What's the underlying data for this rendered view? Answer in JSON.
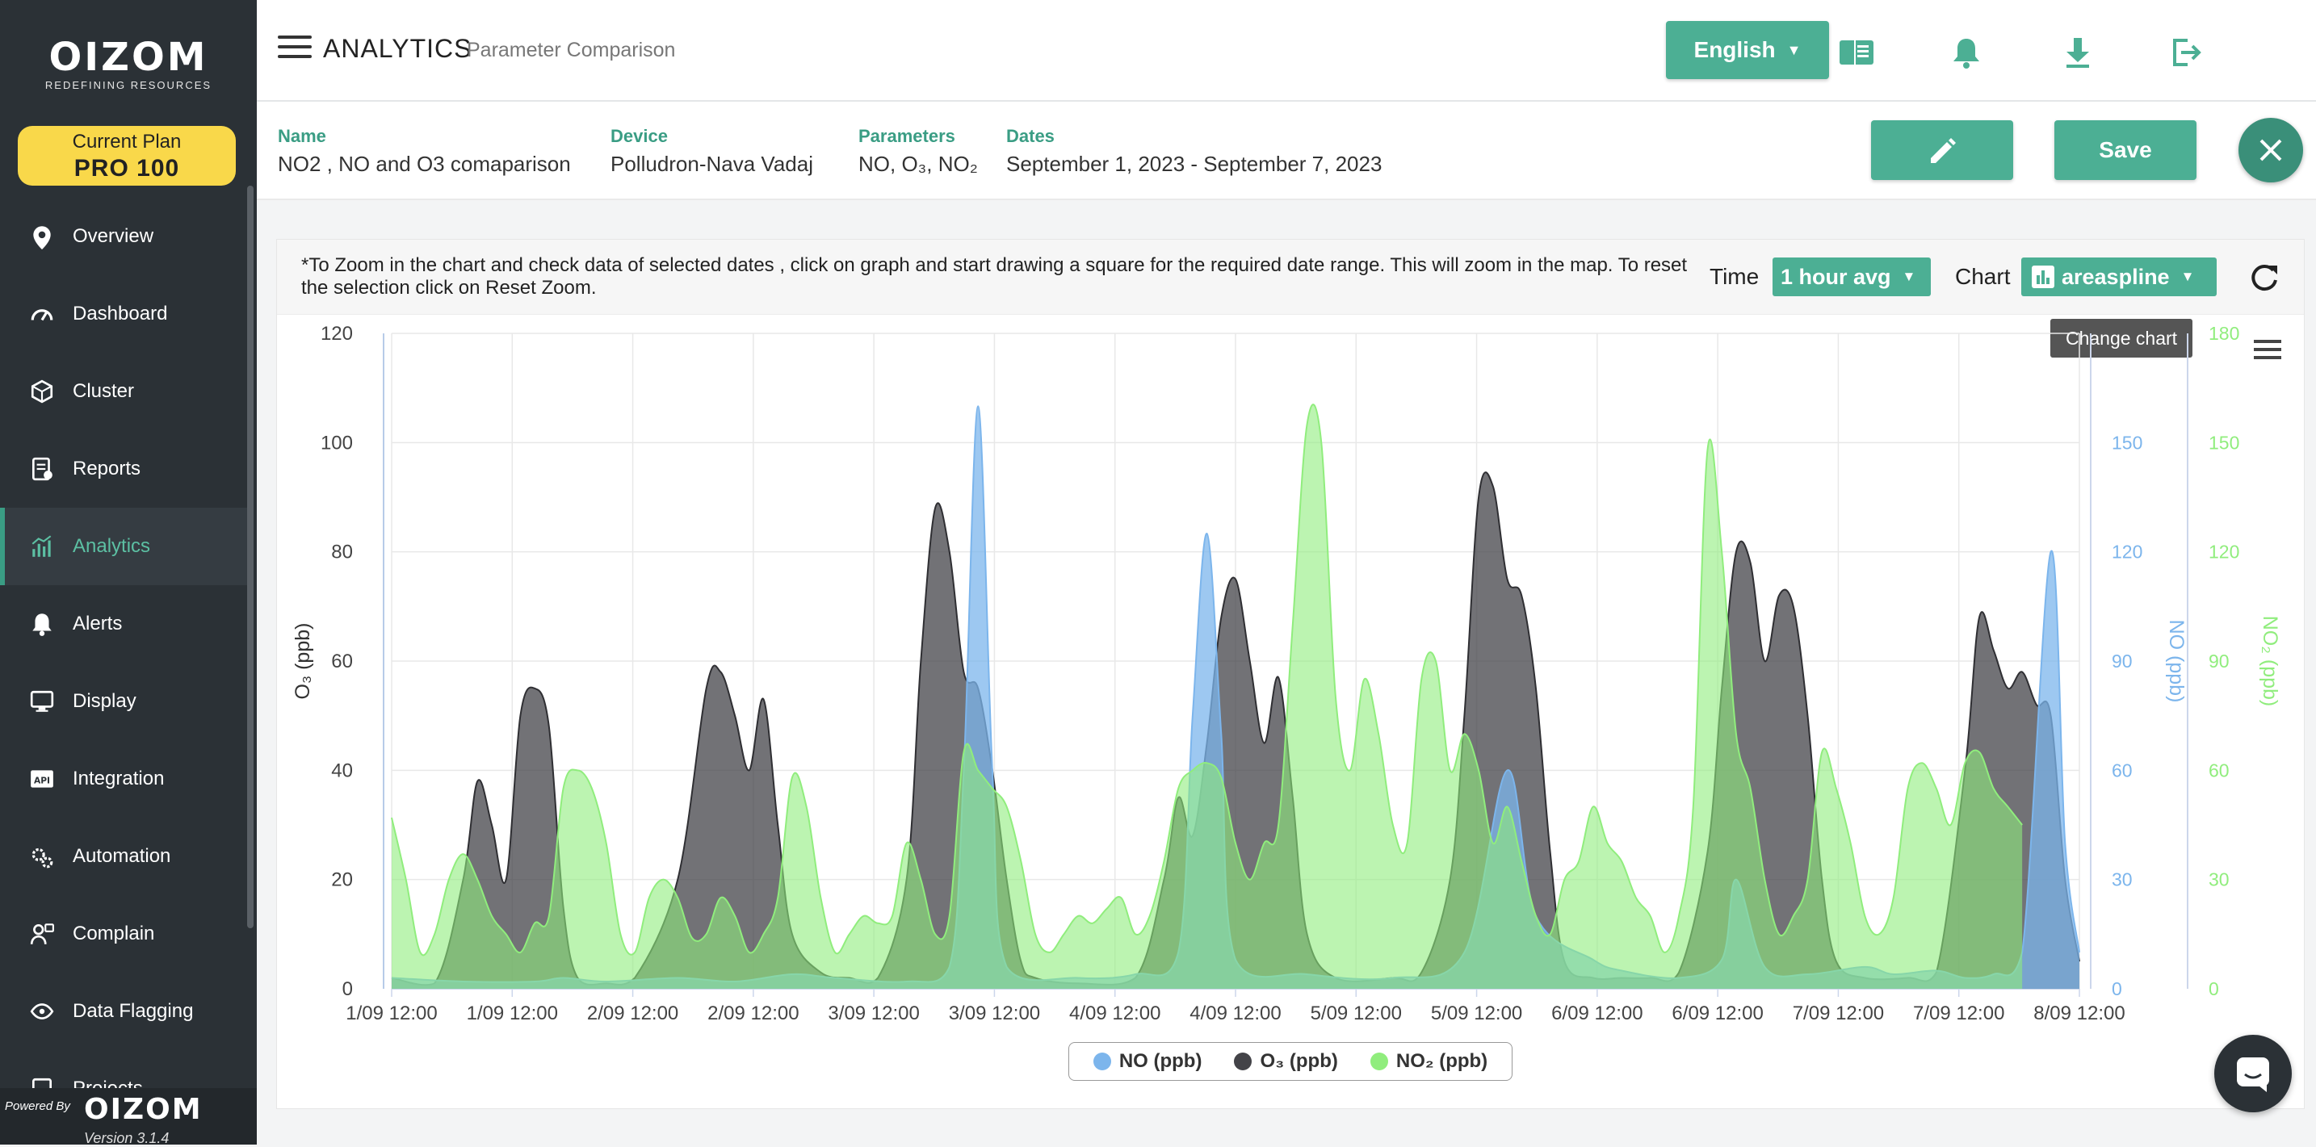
{
  "brand": {
    "name": "OIZOM",
    "tagline": "REDEFINING RESOURCES"
  },
  "plan": {
    "label": "Current Plan",
    "name": "PRO 100"
  },
  "sidebar": {
    "items": [
      {
        "label": "Overview",
        "icon": "map-pin-icon"
      },
      {
        "label": "Dashboard",
        "icon": "gauge-icon"
      },
      {
        "label": "Cluster",
        "icon": "cube-network-icon"
      },
      {
        "label": "Reports",
        "icon": "report-icon"
      },
      {
        "label": "Analytics",
        "icon": "chart-icon",
        "active": true
      },
      {
        "label": "Alerts",
        "icon": "bell-icon"
      },
      {
        "label": "Display",
        "icon": "monitor-icon"
      },
      {
        "label": "Integration",
        "icon": "api-icon"
      },
      {
        "label": "Automation",
        "icon": "gears-icon"
      },
      {
        "label": "Complain",
        "icon": "complain-icon"
      },
      {
        "label": "Data Flagging",
        "icon": "eye-network-icon"
      },
      {
        "label": "Projects",
        "icon": "project-icon"
      }
    ],
    "powered_by": "Powered By",
    "powered_brand": "OIZOM",
    "version": "Version 3.1.4"
  },
  "header": {
    "title": "ANALYTICS",
    "subtitle": "Parameter Comparison",
    "language": "English"
  },
  "info": {
    "name_label": "Name",
    "name_value": "NO2 , NO and O3 comaparison",
    "device_label": "Device",
    "device_value": "Polludron-Nava Vadaj",
    "params_label": "Parameters",
    "params_value": "NO, O₃, NO₂",
    "dates_label": "Dates",
    "dates_value": "September 1, 2023 - September 7, 2023",
    "save_label": "Save"
  },
  "chart_controls": {
    "note": "*To Zoom in the chart and check data of selected dates , click on graph and start drawing a square for the required date range. This will zoom in the map. To reset the selection click on Reset Zoom.",
    "time_label": "Time",
    "time_value": "1 hour avg",
    "chart_label": "Chart",
    "chart_value": "areaspline",
    "tooltip": "Change chart"
  },
  "chart_data": {
    "type": "area",
    "x_ticks": [
      "1/09 12:00",
      "1/09 12:00",
      "2/09 12:00",
      "2/09 12:00",
      "3/09 12:00",
      "3/09 12:00",
      "4/09 12:00",
      "4/09 12:00",
      "5/09 12:00",
      "5/09 12:00",
      "6/09 12:00",
      "6/09 12:00",
      "7/09 12:00",
      "7/09 12:00",
      "8/09 12:00"
    ],
    "y_axes": [
      {
        "label": "O₃ (ppb)",
        "range": [
          0,
          120
        ],
        "ticks": [
          0,
          20,
          40,
          60,
          80,
          100,
          120
        ],
        "color": "#333333"
      },
      {
        "label": "NO (ppb)",
        "range": [
          0,
          180
        ],
        "ticks": [
          0,
          30,
          60,
          90,
          120,
          150
        ],
        "color": "#7cb5ec"
      },
      {
        "label": "NO₂ (ppb)",
        "range": [
          0,
          180
        ],
        "ticks": [
          0,
          30,
          60,
          90,
          120,
          150,
          180
        ],
        "color": "#90ed7d"
      }
    ],
    "grid": true,
    "legend_position": "bottom-center",
    "series": [
      {
        "name": "NO (ppb)",
        "color": "#7cb5ec",
        "axis": 1,
        "values": [
          [
            0,
            3
          ],
          [
            10,
            2
          ],
          [
            20,
            2
          ],
          [
            24,
            3
          ],
          [
            30,
            2
          ],
          [
            40,
            3
          ],
          [
            48,
            2
          ],
          [
            56,
            4
          ],
          [
            62,
            3
          ],
          [
            72,
            2
          ],
          [
            78,
            6
          ],
          [
            80,
            60
          ],
          [
            82,
            160
          ],
          [
            84,
            60
          ],
          [
            86,
            6
          ],
          [
            96,
            3
          ],
          [
            104,
            4
          ],
          [
            110,
            10
          ],
          [
            112,
            75
          ],
          [
            114,
            125
          ],
          [
            116,
            70
          ],
          [
            118,
            8
          ],
          [
            128,
            4
          ],
          [
            140,
            3
          ],
          [
            150,
            10
          ],
          [
            156,
            60
          ],
          [
            160,
            20
          ],
          [
            168,
            8
          ],
          [
            172,
            5
          ],
          [
            180,
            3
          ],
          [
            186,
            8
          ],
          [
            188,
            30
          ],
          [
            192,
            6
          ],
          [
            198,
            4
          ],
          [
            206,
            6
          ],
          [
            210,
            4
          ],
          [
            216,
            5
          ],
          [
            220,
            3
          ],
          [
            224,
            4
          ],
          [
            228,
            10
          ],
          [
            232,
            120
          ],
          [
            234,
            40
          ],
          [
            236,
            10
          ]
        ]
      },
      {
        "name": "O₃ (ppb)",
        "color": "#434348",
        "axis": 0,
        "values": [
          [
            0,
            2
          ],
          [
            6,
            1
          ],
          [
            10,
            20
          ],
          [
            12,
            38
          ],
          [
            14,
            30
          ],
          [
            16,
            20
          ],
          [
            18,
            50
          ],
          [
            20,
            55
          ],
          [
            22,
            48
          ],
          [
            24,
            15
          ],
          [
            26,
            2
          ],
          [
            30,
            1
          ],
          [
            34,
            2
          ],
          [
            40,
            20
          ],
          [
            44,
            55
          ],
          [
            46,
            58
          ],
          [
            48,
            50
          ],
          [
            50,
            40
          ],
          [
            52,
            53
          ],
          [
            54,
            30
          ],
          [
            56,
            10
          ],
          [
            60,
            3
          ],
          [
            64,
            2
          ],
          [
            68,
            2
          ],
          [
            72,
            20
          ],
          [
            74,
            60
          ],
          [
            76,
            88
          ],
          [
            78,
            80
          ],
          [
            80,
            58
          ],
          [
            82,
            55
          ],
          [
            84,
            40
          ],
          [
            86,
            20
          ],
          [
            88,
            5
          ],
          [
            90,
            2
          ],
          [
            96,
            1
          ],
          [
            104,
            2
          ],
          [
            108,
            20
          ],
          [
            110,
            35
          ],
          [
            112,
            28
          ],
          [
            114,
            45
          ],
          [
            116,
            68
          ],
          [
            118,
            75
          ],
          [
            120,
            60
          ],
          [
            122,
            45
          ],
          [
            124,
            57
          ],
          [
            126,
            35
          ],
          [
            128,
            10
          ],
          [
            132,
            2
          ],
          [
            140,
            2
          ],
          [
            144,
            3
          ],
          [
            148,
            20
          ],
          [
            150,
            50
          ],
          [
            152,
            90
          ],
          [
            154,
            92
          ],
          [
            156,
            75
          ],
          [
            158,
            72
          ],
          [
            160,
            55
          ],
          [
            162,
            25
          ],
          [
            164,
            5
          ],
          [
            168,
            2
          ],
          [
            172,
            2
          ],
          [
            176,
            2
          ],
          [
            180,
            3
          ],
          [
            184,
            25
          ],
          [
            186,
            55
          ],
          [
            188,
            80
          ],
          [
            190,
            78
          ],
          [
            192,
            60
          ],
          [
            194,
            72
          ],
          [
            196,
            70
          ],
          [
            198,
            50
          ],
          [
            200,
            20
          ],
          [
            202,
            5
          ],
          [
            206,
            2
          ],
          [
            212,
            2
          ],
          [
            216,
            3
          ],
          [
            220,
            40
          ],
          [
            222,
            68
          ],
          [
            224,
            62
          ],
          [
            226,
            55
          ],
          [
            228,
            58
          ],
          [
            230,
            52
          ],
          [
            232,
            50
          ],
          [
            234,
            20
          ],
          [
            236,
            5
          ]
        ]
      },
      {
        "name": "NO₂ (ppb)",
        "color": "#90ed7d",
        "axis": 2,
        "values": [
          [
            0,
            47
          ],
          [
            2,
            30
          ],
          [
            4,
            10
          ],
          [
            6,
            15
          ],
          [
            8,
            30
          ],
          [
            10,
            37
          ],
          [
            12,
            30
          ],
          [
            14,
            20
          ],
          [
            16,
            15
          ],
          [
            18,
            10
          ],
          [
            20,
            18
          ],
          [
            22,
            20
          ],
          [
            24,
            55
          ],
          [
            26,
            60
          ],
          [
            28,
            55
          ],
          [
            30,
            40
          ],
          [
            32,
            15
          ],
          [
            34,
            10
          ],
          [
            36,
            25
          ],
          [
            38,
            30
          ],
          [
            40,
            25
          ],
          [
            42,
            14
          ],
          [
            44,
            15
          ],
          [
            46,
            25
          ],
          [
            48,
            20
          ],
          [
            50,
            10
          ],
          [
            52,
            15
          ],
          [
            54,
            25
          ],
          [
            56,
            58
          ],
          [
            58,
            50
          ],
          [
            60,
            25
          ],
          [
            62,
            10
          ],
          [
            64,
            15
          ],
          [
            66,
            20
          ],
          [
            68,
            18
          ],
          [
            70,
            20
          ],
          [
            72,
            40
          ],
          [
            74,
            30
          ],
          [
            76,
            15
          ],
          [
            78,
            20
          ],
          [
            80,
            65
          ],
          [
            82,
            60
          ],
          [
            84,
            55
          ],
          [
            86,
            50
          ],
          [
            88,
            35
          ],
          [
            90,
            15
          ],
          [
            92,
            10
          ],
          [
            94,
            15
          ],
          [
            96,
            20
          ],
          [
            98,
            18
          ],
          [
            100,
            22
          ],
          [
            102,
            25
          ],
          [
            104,
            15
          ],
          [
            106,
            20
          ],
          [
            108,
            35
          ],
          [
            110,
            55
          ],
          [
            112,
            60
          ],
          [
            114,
            62
          ],
          [
            116,
            58
          ],
          [
            118,
            40
          ],
          [
            120,
            30
          ],
          [
            122,
            40
          ],
          [
            124,
            45
          ],
          [
            126,
            100
          ],
          [
            128,
            155
          ],
          [
            130,
            150
          ],
          [
            132,
            80
          ],
          [
            134,
            60
          ],
          [
            136,
            85
          ],
          [
            138,
            70
          ],
          [
            140,
            45
          ],
          [
            142,
            40
          ],
          [
            144,
            85
          ],
          [
            146,
            90
          ],
          [
            148,
            60
          ],
          [
            150,
            70
          ],
          [
            152,
            60
          ],
          [
            154,
            40
          ],
          [
            156,
            50
          ],
          [
            158,
            35
          ],
          [
            160,
            20
          ],
          [
            162,
            15
          ],
          [
            164,
            30
          ],
          [
            166,
            35
          ],
          [
            168,
            50
          ],
          [
            170,
            40
          ],
          [
            172,
            35
          ],
          [
            174,
            25
          ],
          [
            176,
            20
          ],
          [
            178,
            10
          ],
          [
            180,
            20
          ],
          [
            182,
            50
          ],
          [
            184,
            148
          ],
          [
            186,
            120
          ],
          [
            188,
            70
          ],
          [
            190,
            55
          ],
          [
            192,
            30
          ],
          [
            194,
            15
          ],
          [
            196,
            20
          ],
          [
            198,
            30
          ],
          [
            200,
            65
          ],
          [
            202,
            55
          ],
          [
            204,
            40
          ],
          [
            206,
            20
          ],
          [
            208,
            15
          ],
          [
            210,
            25
          ],
          [
            212,
            55
          ],
          [
            214,
            62
          ],
          [
            216,
            55
          ],
          [
            218,
            45
          ],
          [
            220,
            62
          ],
          [
            222,
            65
          ],
          [
            224,
            55
          ],
          [
            226,
            50
          ],
          [
            228,
            45
          ]
        ]
      }
    ]
  },
  "legend": {
    "no": "NO (ppb)",
    "o3": "O₃ (ppb)",
    "no2": "NO₂ (ppb)"
  }
}
